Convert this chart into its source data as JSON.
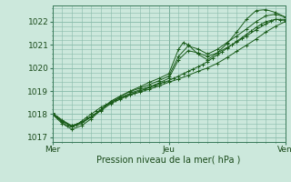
{
  "bg_color": "#cce8dc",
  "grid_color": "#88bbaa",
  "line_color": "#1a5c1a",
  "xlim": [
    0,
    48
  ],
  "ylim": [
    1016.8,
    1022.7
  ],
  "yticks": [
    1017,
    1018,
    1019,
    1020,
    1021,
    1022
  ],
  "xtick_labels": [
    "Mer",
    "Jeu",
    "Ven"
  ],
  "xtick_positions": [
    0,
    24,
    48
  ],
  "xlabel": "Pression niveau de la mer( hPa )",
  "series": [
    [
      0.0,
      1018.0,
      1.0,
      1017.85,
      2.0,
      1017.65,
      3.0,
      1017.5,
      4.0,
      1017.45,
      5.0,
      1017.55,
      6.0,
      1017.7,
      7.0,
      1017.85,
      8.0,
      1018.0,
      9.0,
      1018.15,
      10.0,
      1018.3,
      11.0,
      1018.4,
      12.0,
      1018.5,
      13.0,
      1018.6,
      14.0,
      1018.7,
      15.0,
      1018.78,
      16.0,
      1018.85,
      17.0,
      1018.93,
      18.0,
      1019.0,
      19.0,
      1019.07,
      20.0,
      1019.15,
      21.0,
      1019.22,
      22.0,
      1019.3,
      23.0,
      1019.38,
      24.0,
      1019.45,
      25.0,
      1019.55,
      26.0,
      1019.65,
      27.0,
      1019.75,
      28.0,
      1019.85,
      29.0,
      1019.95,
      30.0,
      1020.05,
      31.0,
      1020.15,
      32.0,
      1020.28,
      33.0,
      1020.42,
      34.0,
      1020.56,
      35.0,
      1020.7,
      36.0,
      1020.85,
      37.0,
      1021.0,
      38.0,
      1021.15,
      39.0,
      1021.3,
      40.0,
      1021.45,
      41.0,
      1021.6,
      42.0,
      1021.75,
      43.0,
      1021.88,
      44.0,
      1022.0,
      45.0,
      1022.05,
      46.0,
      1022.1,
      47.0,
      1022.08,
      48.0,
      1022.05
    ],
    [
      0.0,
      1018.0,
      2.0,
      1017.7,
      4.0,
      1017.5,
      6.0,
      1017.65,
      8.0,
      1017.9,
      10.0,
      1018.15,
      12.0,
      1018.45,
      14.0,
      1018.65,
      16.0,
      1018.83,
      18.0,
      1018.95,
      20.0,
      1019.08,
      22.0,
      1019.22,
      24.0,
      1019.38,
      26.0,
      1019.52,
      28.0,
      1019.68,
      30.0,
      1019.85,
      32.0,
      1020.0,
      34.0,
      1020.2,
      36.0,
      1020.45,
      38.0,
      1020.72,
      40.0,
      1020.98,
      42.0,
      1021.25,
      44.0,
      1021.55,
      46.0,
      1021.8,
      48.0,
      1022.0
    ],
    [
      0.0,
      1018.05,
      2.0,
      1017.75,
      4.0,
      1017.5,
      6.0,
      1017.65,
      8.0,
      1017.9,
      10.0,
      1018.2,
      12.0,
      1018.5,
      14.0,
      1018.72,
      16.0,
      1018.9,
      18.0,
      1019.05,
      20.0,
      1019.18,
      22.0,
      1019.35,
      24.0,
      1019.55,
      26.0,
      1020.35,
      28.0,
      1020.75,
      30.0,
      1020.65,
      32.0,
      1020.5,
      34.0,
      1020.65,
      36.0,
      1020.88,
      38.0,
      1021.12,
      40.0,
      1021.38,
      42.0,
      1021.65,
      44.0,
      1021.9,
      46.0,
      1022.1,
      48.0,
      1022.1
    ],
    [
      0.0,
      1018.05,
      2.0,
      1017.7,
      4.0,
      1017.45,
      6.0,
      1017.6,
      8.0,
      1017.88,
      10.0,
      1018.2,
      12.0,
      1018.55,
      14.0,
      1018.78,
      16.0,
      1018.98,
      18.0,
      1019.12,
      20.0,
      1019.28,
      22.0,
      1019.45,
      24.0,
      1019.65,
      26.0,
      1020.5,
      28.0,
      1020.95,
      30.0,
      1020.82,
      32.0,
      1020.6,
      34.0,
      1020.8,
      36.0,
      1021.1,
      38.0,
      1021.38,
      40.0,
      1021.68,
      42.0,
      1022.0,
      44.0,
      1022.25,
      46.0,
      1022.32,
      48.0,
      1022.2
    ],
    [
      0.0,
      1018.0,
      2.0,
      1017.6,
      4.0,
      1017.35,
      6.0,
      1017.5,
      8.0,
      1017.8,
      10.0,
      1018.18,
      12.0,
      1018.55,
      14.0,
      1018.78,
      16.0,
      1019.0,
      18.0,
      1019.18,
      20.0,
      1019.38,
      22.0,
      1019.55,
      24.0,
      1019.75,
      26.0,
      1020.8,
      27.0,
      1021.1,
      28.0,
      1021.0,
      30.0,
      1020.6,
      32.0,
      1020.35,
      34.0,
      1020.65,
      36.0,
      1021.05,
      38.0,
      1021.55,
      40.0,
      1022.1,
      42.0,
      1022.48,
      44.0,
      1022.52,
      46.0,
      1022.4,
      48.0,
      1022.2
    ]
  ]
}
